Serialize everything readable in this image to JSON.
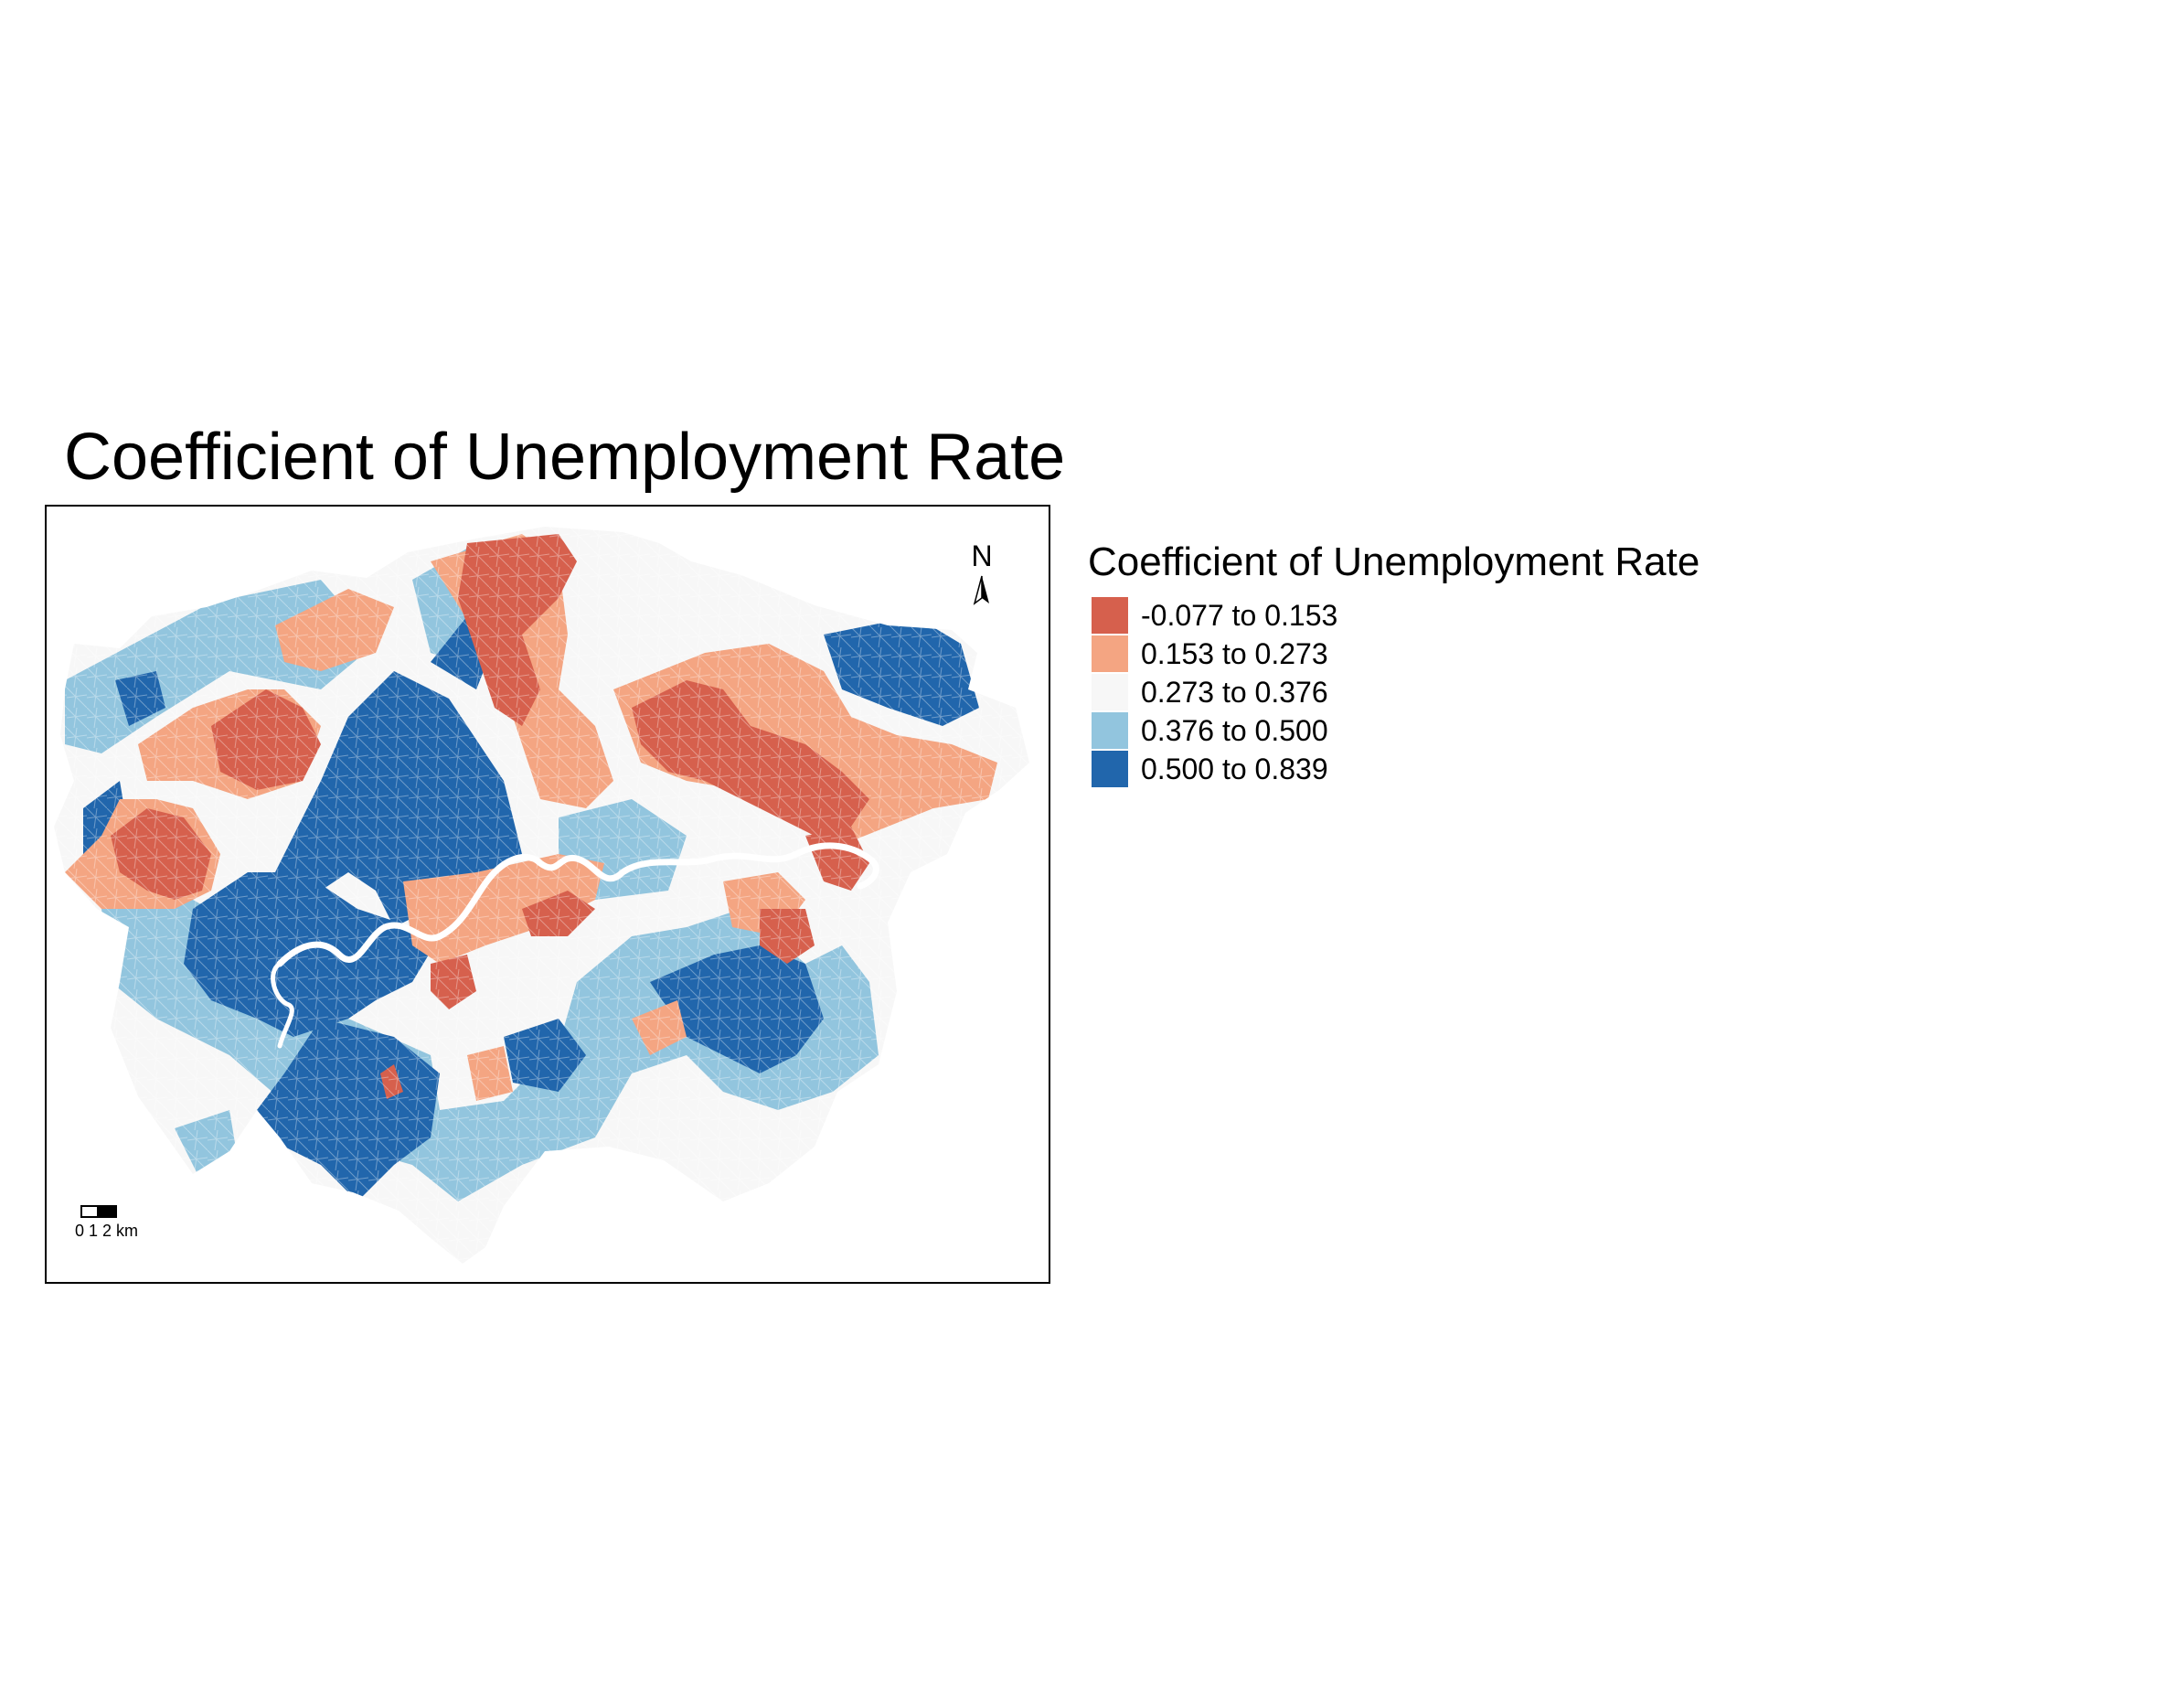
{
  "title": "Coefficient of Unemployment Rate",
  "legend": {
    "title": "Coefficient of Unemployment Rate",
    "items": [
      {
        "label": "-0.077 to 0.153",
        "color": "#d6604d"
      },
      {
        "label": "0.153 to 0.273",
        "color": "#f4a582"
      },
      {
        "label": "0.273 to 0.376",
        "color": "#f7f7f7"
      },
      {
        "label": "0.376 to 0.500",
        "color": "#92c5de"
      },
      {
        "label": "0.500 to 0.839",
        "color": "#2166ac"
      }
    ]
  },
  "north_arrow": {
    "label": "N"
  },
  "scale_bar": {
    "label": "0 1 2 km"
  }
}
